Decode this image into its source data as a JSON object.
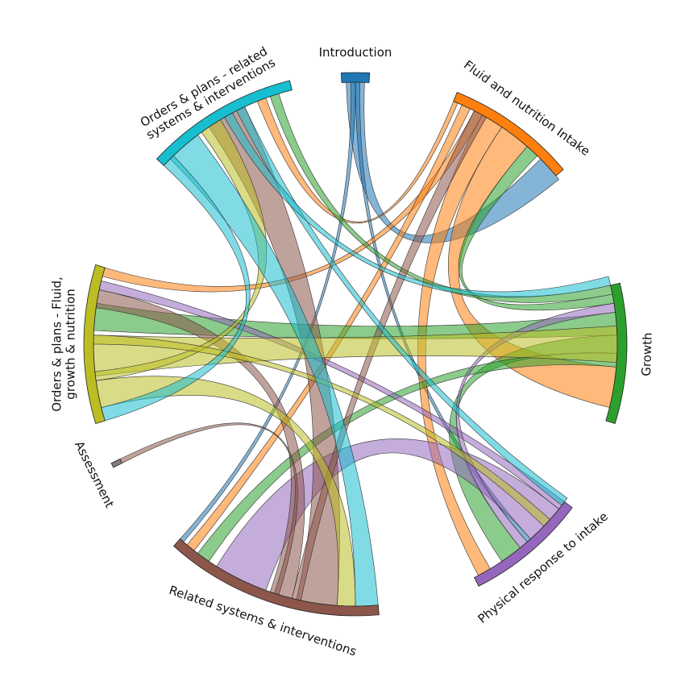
{
  "chart_data": {
    "type": "chord",
    "title": "",
    "segments": [
      {
        "name": "Introduction",
        "label_lines": [
          "Introduction"
        ],
        "start_deg": 357,
        "end_deg": 3,
        "color": "#1f77b4"
      },
      {
        "name": "Fluid and nutrition Intake",
        "label_lines": [
          "Fluid and nutrition Intake"
        ],
        "start_deg": 22,
        "end_deg": 50,
        "color": "#ff7f0e"
      },
      {
        "name": "Growth",
        "label_lines": [
          "Growth"
        ],
        "start_deg": 77,
        "end_deg": 107,
        "color": "#2ca02c"
      },
      {
        "name": "Physical response to intake",
        "label_lines": [
          "Physical response to intake"
        ],
        "start_deg": 127,
        "end_deg": 153,
        "color": "#9467bd"
      },
      {
        "name": "Related systems & interventions",
        "label_lines": [
          "Related systems & interventions"
        ],
        "start_deg": 175,
        "end_deg": 222,
        "color": "#8c564b"
      },
      {
        "name": "Assessment",
        "label_lines": [
          "Assessment"
        ],
        "start_deg": 243,
        "end_deg": 244,
        "color": "#7f7f7f"
      },
      {
        "name": "Orders & plans - Fluid, growth & nutrition",
        "label_lines": [
          "Orders & plans - Fluid,",
          "growth & nutrition"
        ],
        "start_deg": 253,
        "end_deg": 287,
        "color": "#bcbd22"
      },
      {
        "name": "Orders & plans - related systems & interventions",
        "label_lines": [
          "Orders & plans - related",
          "systems & interventions"
        ],
        "start_deg": 313,
        "end_deg": 346,
        "color": "#17becf"
      }
    ],
    "links": [
      {
        "source": "Introduction",
        "target": "Fluid and nutrition Intake",
        "source_arc": [
          358,
          2
        ],
        "target_arc": [
          45,
          51
        ],
        "color": "#1f77b4"
      },
      {
        "source": "Introduction",
        "target": "Related systems & interventions",
        "source_arc": [
          359,
          360
        ],
        "target_arc": [
          221,
          222
        ],
        "color": "#1f77b4"
      },
      {
        "source": "Introduction",
        "target": "Physical response to intake",
        "source_arc": [
          0,
          1
        ],
        "target_arc": [
          138,
          139
        ],
        "color": "#1f77b4"
      },
      {
        "source": "Fluid and nutrition Intake",
        "target": "Growth",
        "source_arc": [
          34,
          41
        ],
        "target_arc": [
          95,
          104
        ],
        "color": "#ff7f0e"
      },
      {
        "source": "Fluid and nutrition Intake",
        "target": "Physical response to intake",
        "source_arc": [
          29,
          34
        ],
        "target_arc": [
          149,
          152
        ],
        "color": "#ff7f0e"
      },
      {
        "source": "Fluid and nutrition Intake",
        "target": "Orders & plans - Fluid, growth & nutrition",
        "source_arc": [
          27,
          29
        ],
        "target_arc": [
          285,
          287
        ],
        "color": "#ff7f0e"
      },
      {
        "source": "Fluid and nutrition Intake",
        "target": "Related systems & interventions",
        "source_arc": [
          24,
          26
        ],
        "target_arc": [
          218,
          220
        ],
        "color": "#ff7f0e"
      },
      {
        "source": "Fluid and nutrition Intake",
        "target": "Orders & plans - related systems & interventions",
        "source_arc": [
          22,
          23
        ],
        "target_arc": [
          338,
          340
        ],
        "color": "#ff7f0e"
      },
      {
        "source": "Growth",
        "target": "Orders & plans - Fluid, growth & nutrition",
        "source_arc": [
          83,
          88
        ],
        "target_arc": [
          273,
          279
        ],
        "color": "#2ca02c"
      },
      {
        "source": "Growth",
        "target": "Physical response to intake",
        "source_arc": [
          88,
          92
        ],
        "target_arc": [
          141,
          146
        ],
        "color": "#2ca02c"
      },
      {
        "source": "Growth",
        "target": "Related systems & interventions",
        "source_arc": [
          92,
          95
        ],
        "target_arc": [
          214,
          217
        ],
        "color": "#2ca02c"
      },
      {
        "source": "Growth",
        "target": "Fluid and nutrition Intake",
        "source_arc": [
          79,
          81
        ],
        "target_arc": [
          41,
          44
        ],
        "color": "#2ca02c"
      },
      {
        "source": "Growth",
        "target": "Orders & plans - related systems & interventions",
        "source_arc": [
          77,
          79
        ],
        "target_arc": [
          341,
          343
        ],
        "color": "#2ca02c"
      },
      {
        "source": "Physical response to intake",
        "target": "Related systems & interventions",
        "source_arc": [
          129,
          138
        ],
        "target_arc": [
          200,
          212
        ],
        "color": "#9467bd"
      },
      {
        "source": "Physical response to intake",
        "target": "Orders & plans - Fluid, growth & nutrition",
        "source_arc": [
          127,
          129
        ],
        "target_arc": [
          282,
          284
        ],
        "color": "#9467bd"
      },
      {
        "source": "Physical response to intake",
        "target": "Growth",
        "source_arc": [
          139,
          141
        ],
        "target_arc": [
          81,
          83
        ],
        "color": "#9467bd"
      },
      {
        "source": "Related systems & interventions",
        "target": "Orders & plans - related systems & interventions",
        "source_arc": [
          184,
          193
        ],
        "target_arc": [
          326,
          335
        ],
        "color": "#8c564b"
      },
      {
        "source": "Related systems & interventions",
        "target": "Orders & plans - Fluid, growth & nutrition",
        "source_arc": [
          194,
          199
        ],
        "target_arc": [
          278,
          282
        ],
        "color": "#8c564b"
      },
      {
        "source": "Related systems & interventions",
        "target": "Fluid and nutrition Intake",
        "source_arc": [
          192,
          194
        ],
        "target_arc": [
          27,
          30
        ],
        "color": "#8c564b"
      },
      {
        "source": "Related systems & interventions",
        "target": "Assessment",
        "source_arc": [
          197,
          198
        ],
        "target_arc": [
          243,
          244
        ],
        "color": "#8c564b"
      },
      {
        "source": "Orders & plans - Fluid, growth & nutrition",
        "target": "Growth",
        "source_arc": [
          263,
          272
        ],
        "target_arc": [
          86,
          94
        ],
        "color": "#bcbd22"
      },
      {
        "source": "Orders & plans - Fluid, growth & nutrition",
        "target": "Related systems & interventions",
        "source_arc": [
          256,
          262
        ],
        "target_arc": [
          180,
          184
        ],
        "color": "#bcbd22"
      },
      {
        "source": "Orders & plans - Fluid, growth & nutrition",
        "target": "Orders & plans - related systems & interventions",
        "source_arc": [
          262,
          264
        ],
        "target_arc": [
          324,
          329
        ],
        "color": "#bcbd22"
      },
      {
        "source": "Orders & plans - Fluid, growth & nutrition",
        "target": "Physical response to intake",
        "source_arc": [
          270,
          272
        ],
        "target_arc": [
          132,
          134
        ],
        "color": "#bcbd22"
      },
      {
        "source": "Orders & plans - related systems & interventions",
        "target": "Related systems & interventions",
        "source_arc": [
          315,
          323
        ],
        "target_arc": [
          175,
          180
        ],
        "color": "#17becf"
      },
      {
        "source": "Orders & plans - related systems & interventions",
        "target": "Orders & plans - Fluid, growth & nutrition",
        "source_arc": [
          313,
          316
        ],
        "target_arc": [
          253,
          256
        ],
        "color": "#17becf"
      },
      {
        "source": "Orders & plans - related systems & interventions",
        "target": "Physical response to intake",
        "source_arc": [
          333,
          335
        ],
        "target_arc": [
          126,
          128
        ],
        "color": "#17becf"
      },
      {
        "source": "Orders & plans - related systems & interventions",
        "target": "Growth",
        "source_arc": [
          330,
          332
        ],
        "target_arc": [
          75,
          77
        ],
        "color": "#17becf"
      }
    ]
  }
}
